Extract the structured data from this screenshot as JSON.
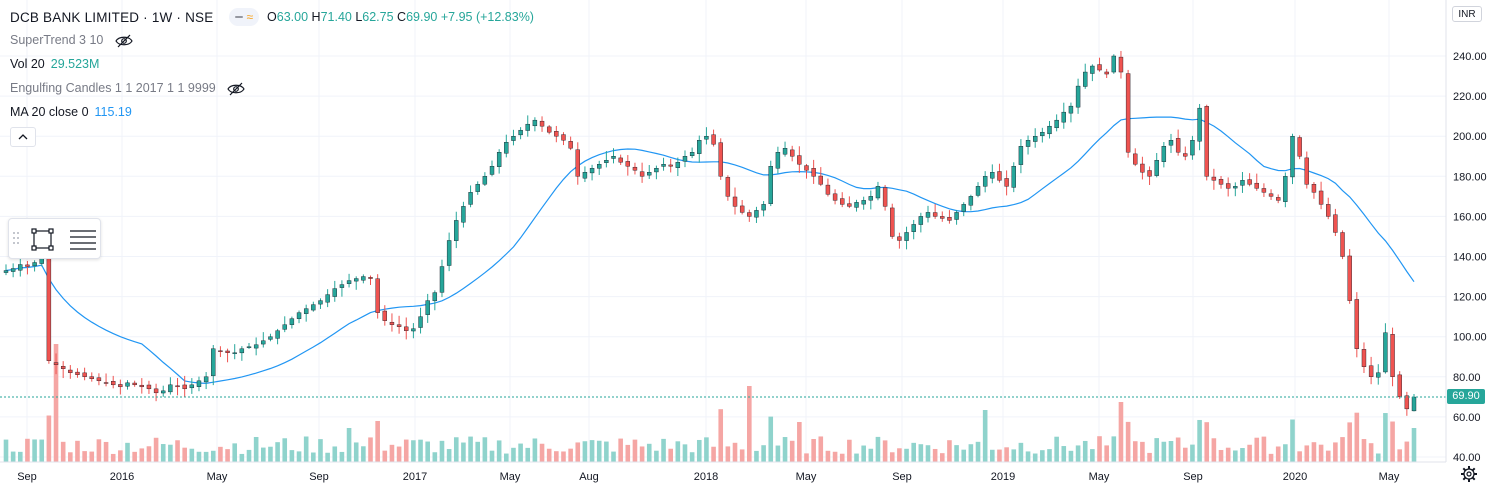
{
  "header": {
    "symbol": "DCB BANK LIMITED · 1W · NSE",
    "ohlc": {
      "o_label": "O",
      "o": "63.00",
      "h_label": "H",
      "h": "71.40",
      "l_label": "L",
      "l": "62.75",
      "c_label": "C",
      "c": "69.90",
      "change": "+7.95 (+12.83%)"
    },
    "currency": "INR"
  },
  "indicators": [
    {
      "name": "SuperTrend 3 10",
      "value": "",
      "hidden": true
    },
    {
      "name": "Vol 20",
      "value": "29.523M",
      "color": "#26a69a"
    },
    {
      "name": "Engulfing Candles 1 1 2017 1 1 9999",
      "value": "",
      "hidden": true
    },
    {
      "name": "MA 20 close 0",
      "value": "115.19",
      "color": "#2196f3"
    }
  ],
  "last_price_label": "69.90",
  "colors": {
    "up": "#26a69a",
    "down": "#ef5350",
    "ma": "#2196f3",
    "vol_up": "#8fd3cc",
    "vol_down": "#f5a6a4"
  },
  "chart_data": {
    "type": "candlestick",
    "interval": "1W",
    "y_axis": {
      "ticks": [
        40,
        60,
        80,
        100,
        120,
        140,
        160,
        180,
        200,
        220,
        240
      ],
      "tick_labels": [
        "40.00",
        "60.00",
        "80.00",
        "100.00",
        "120.00",
        "140.00",
        "160.00",
        "180.00",
        "200.00",
        "220.00",
        "240.00"
      ],
      "range": [
        38,
        250
      ],
      "side": "right"
    },
    "x_axis": {
      "tick_labels": [
        "Sep",
        "2016",
        "May",
        "Sep",
        "2017",
        "May",
        "Aug",
        "2018",
        "May",
        "Sep",
        "2019",
        "May",
        "Sep",
        "2020",
        "May"
      ]
    },
    "close_series": [
      133,
      134,
      136,
      135,
      137,
      139,
      88,
      86,
      84,
      82,
      81,
      80,
      79,
      78,
      77,
      76,
      75,
      77,
      76,
      75,
      74,
      72,
      73,
      76,
      75,
      74,
      76,
      78,
      80,
      94,
      93,
      92,
      92,
      94,
      95,
      96,
      98,
      100,
      103,
      106,
      109,
      112,
      114,
      116,
      118,
      121,
      124,
      126,
      128,
      129,
      130,
      129,
      112,
      108,
      106,
      105,
      103,
      104,
      110,
      118,
      122,
      135,
      148,
      158,
      165,
      172,
      176,
      180,
      185,
      192,
      197,
      200,
      203,
      206,
      208,
      205,
      202,
      200,
      198,
      194,
      180,
      182,
      184,
      186,
      188,
      190,
      187,
      185,
      183,
      180,
      182,
      184,
      186,
      185,
      187,
      190,
      192,
      198,
      200,
      196,
      180,
      170,
      165,
      162,
      160,
      163,
      166,
      185,
      192,
      194,
      190,
      186,
      183,
      180,
      176,
      171,
      168,
      166,
      165,
      167,
      168,
      170,
      175,
      165,
      150,
      148,
      152,
      156,
      160,
      162,
      160,
      159,
      158,
      162,
      166,
      170,
      175,
      180,
      182,
      178,
      175,
      185,
      195,
      198,
      200,
      202,
      205,
      208,
      212,
      215,
      225,
      232,
      235,
      233,
      231,
      240,
      232,
      192,
      186,
      182,
      180,
      188,
      195,
      198,
      192,
      190,
      198,
      214,
      180,
      178,
      176,
      174,
      175,
      178,
      176,
      174,
      172,
      170,
      168,
      180,
      200,
      190,
      176,
      172,
      166,
      160,
      152,
      140,
      118,
      94,
      85,
      80,
      82,
      102,
      80,
      70,
      64,
      69.9
    ],
    "ma_label": "MA 20 close 0",
    "ma_value": "115.19",
    "volume_label": "Vol 20",
    "volume_value": "29.523M",
    "last_close": 69.9
  }
}
